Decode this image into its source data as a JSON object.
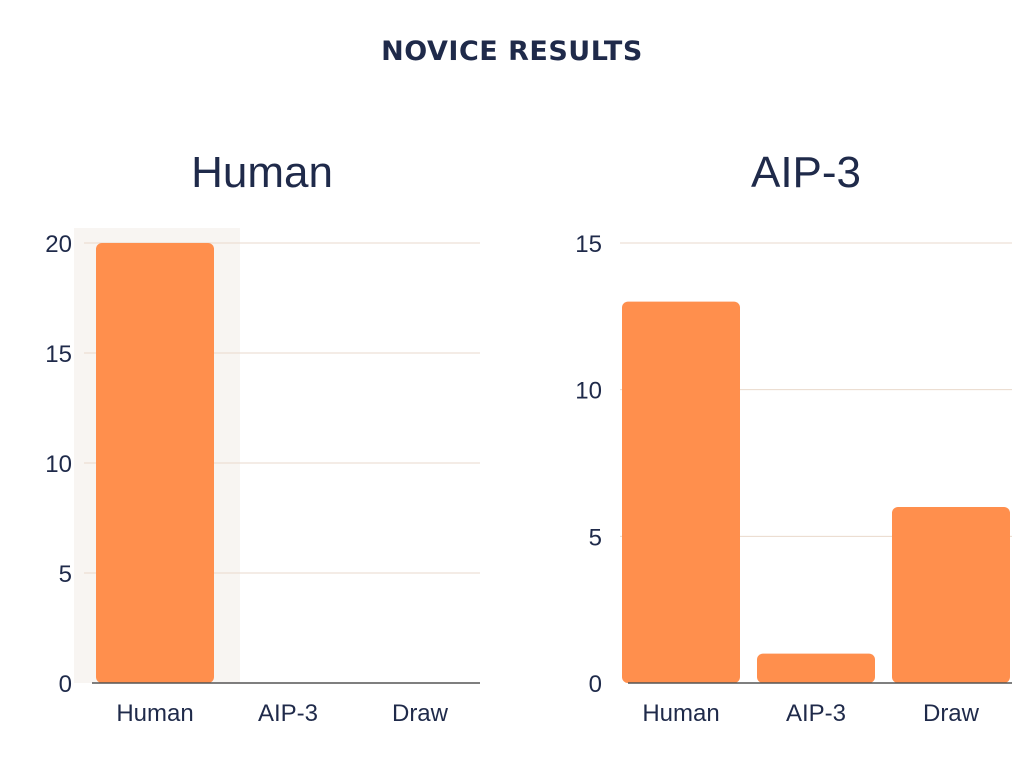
{
  "page": {
    "title": "NOVICE RESULTS"
  },
  "colors": {
    "bar": "#ff8f4d",
    "grid": "#ead9cc",
    "axis": "#555555",
    "highlight": "#f8f5f2",
    "text": "#1f2a4a"
  },
  "chart_data": [
    {
      "type": "bar",
      "title": "Human",
      "categories": [
        "Human",
        "AIP-3",
        "Draw"
      ],
      "values": [
        20,
        0,
        0
      ],
      "ylim": [
        0,
        20
      ],
      "yticks": [
        0,
        5,
        10,
        15,
        20
      ],
      "xlabel": "",
      "ylabel": "",
      "grid": true,
      "highlight_category": "Human"
    },
    {
      "type": "bar",
      "title": "AIP-3",
      "categories": [
        "Human",
        "AIP-3",
        "Draw"
      ],
      "values": [
        13,
        1,
        6
      ],
      "ylim": [
        0,
        15
      ],
      "yticks": [
        0,
        5,
        10,
        15
      ],
      "xlabel": "",
      "ylabel": "",
      "grid": true
    }
  ]
}
